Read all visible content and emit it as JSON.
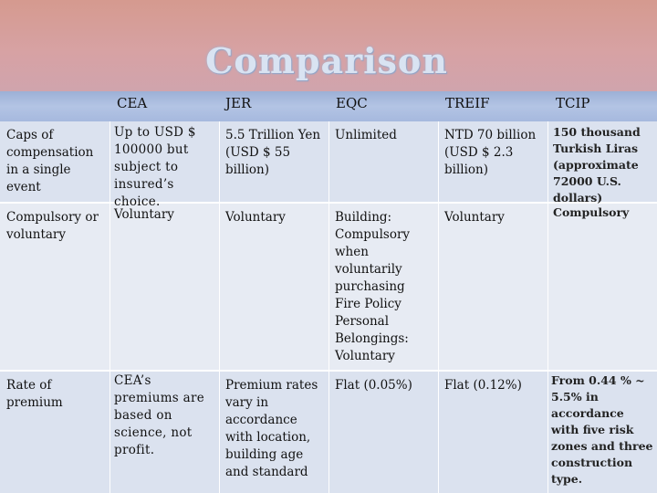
{
  "slide": {
    "title": "Comparison"
  },
  "table": {
    "columns": [
      "",
      "CEA",
      "JER",
      "EQC",
      "TREIF",
      "TCIP"
    ],
    "rows": [
      {
        "label": "Caps of compensation in a single event",
        "cea": "Up to USD $ 100000 but subject to insured’s choice.",
        "jer": "5.5 Trillion Yen (USD $ 55 billion)",
        "eqc": "Unlimited",
        "treif": "NTD 70 billion (USD $ 2.3 billion)",
        "tcip": "150 thousand Turkish Liras (approximate 72000 U.S. dollars)"
      },
      {
        "label": "Compulsory or voluntary",
        "cea": "Voluntary",
        "jer": "Voluntary",
        "eqc": "Building: Compulsory when voluntarily purchasing Fire Policy Personal Belongings: Voluntary",
        "treif": "Voluntary",
        "tcip": "Compulsory"
      },
      {
        "label": "Rate of premium",
        "cea": "CEA’s premiums are based on science, not profit.",
        "jer": "Premium rates vary in accordance with location, building age and standard",
        "eqc": "Flat (0.05%)",
        "treif": "Flat (0.12%)",
        "tcip": "From 0.44 % ~ 5.5% in accordance with five risk zones and three construction type."
      }
    ]
  }
}
